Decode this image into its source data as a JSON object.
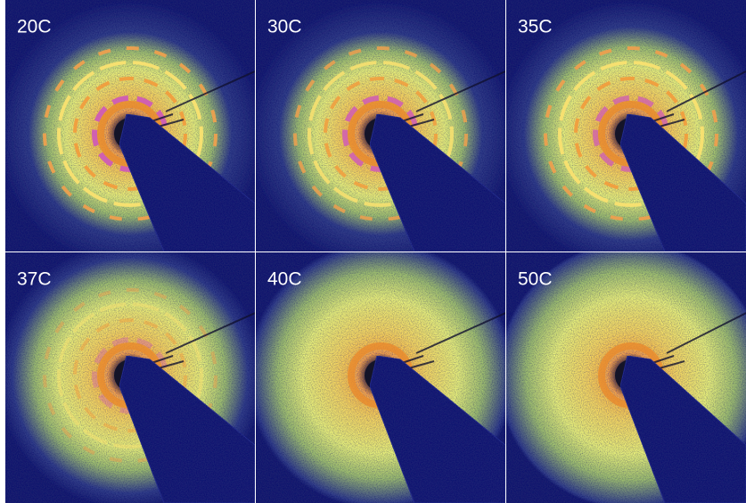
{
  "panels": [
    {
      "label": "20C"
    },
    {
      "label": "30C"
    },
    {
      "label": "35C"
    },
    {
      "label": "37C"
    },
    {
      "label": "40C"
    },
    {
      "label": "50C"
    }
  ]
}
